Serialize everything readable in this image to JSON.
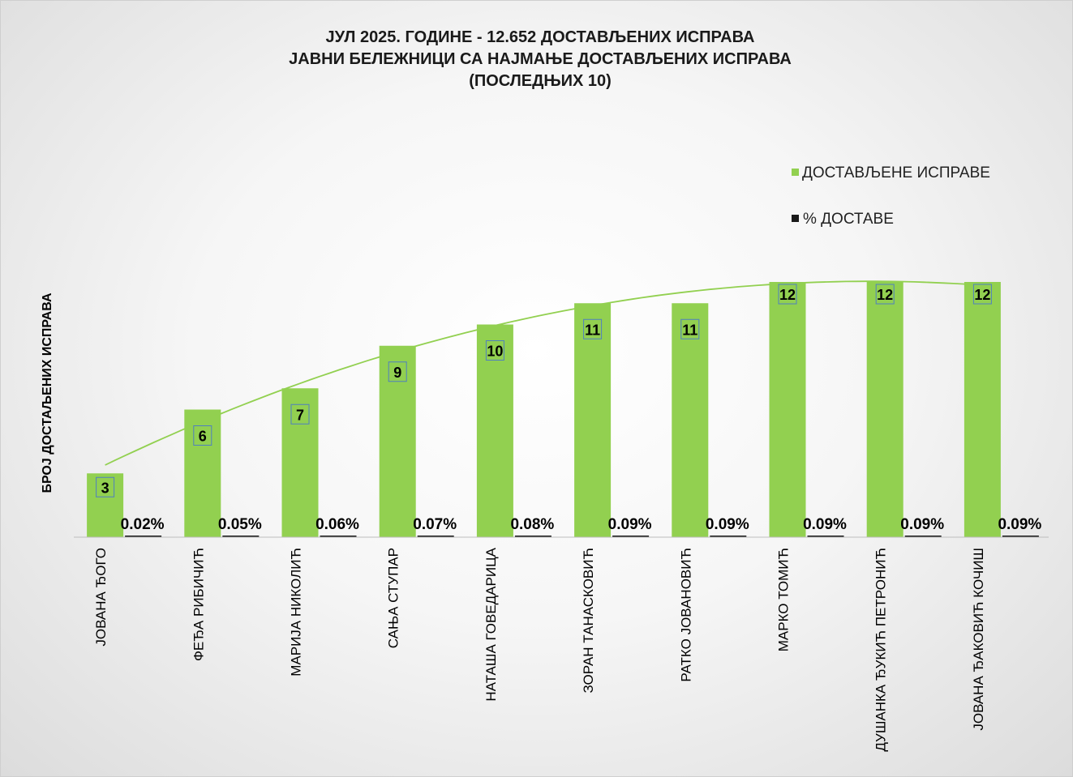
{
  "chart_data": {
    "type": "bar",
    "title": [
      "ЈУЛ 2025. ГОДИНЕ - 12.652 ДОСТАВЉЕНИХ ИСПРАВА",
      "ЈАВНИ БЕЛЕЖНИЦИ СА НАЈМАЊЕ ДОСТАВЉЕНИХ ИСПРАВА",
      "(ПОСЛЕДЊИХ 10)"
    ],
    "ylabel": "БРОЈ ДОСТАЉЕНИХ ИСПРАВА",
    "xlabel": "",
    "categories": [
      "ЈОВАНА ЂОГО",
      "ФЕЂА РИБИЧИЋ",
      "МАРИЈА НИКОЛИЋ",
      "САЊА СТУПАР",
      "НАТАША ГОВЕДАРИЦА",
      "ЗОРАН ТАНАСКОВИЋ",
      "РАТКО ЈОВАНОВИЋ",
      "МАРКО ТОМИЋ",
      "ДУШАНКА ЂУКИЋ ПЕТРОНИЋ",
      "ЈОВАНА ЂАКОВИЋ КОЧИШ"
    ],
    "series": [
      {
        "name": "ДОСТАВЉЕНЕ ИСПРАВЕ",
        "color": "#92d050",
        "values": [
          3,
          6,
          7,
          9,
          10,
          11,
          11,
          12,
          12,
          12
        ]
      },
      {
        "name": "% ДОСТАВЕ",
        "color": "#1a1a1a",
        "values": [
          0.02,
          0.05,
          0.06,
          0.07,
          0.08,
          0.09,
          0.09,
          0.09,
          0.09,
          0.09
        ],
        "labels": [
          "0.02%",
          "0.05%",
          "0.06%",
          "0.07%",
          "0.08%",
          "0.09%",
          "0.09%",
          "0.09%",
          "0.09%",
          "0.09%"
        ]
      }
    ],
    "trendline": {
      "type": "polynomial",
      "color": "#92d050",
      "series": "ДОСТАВЉЕНЕ ИСПРАВЕ"
    },
    "ylim": [
      0,
      12
    ],
    "grid": false,
    "legend": "top-right"
  }
}
